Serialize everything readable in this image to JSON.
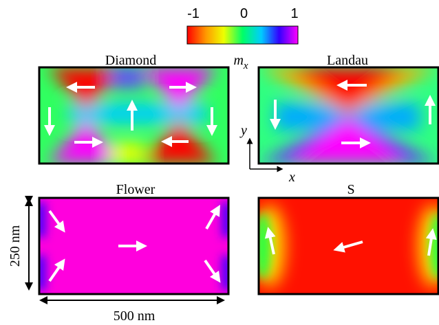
{
  "colorbar": {
    "ticks": [
      -1,
      0,
      1
    ],
    "range": [
      -1,
      1
    ],
    "label": "m",
    "label_sub": "x"
  },
  "panels": [
    {
      "title": "Diamond"
    },
    {
      "title": "Landau"
    },
    {
      "title": "Flower"
    },
    {
      "title": "S"
    }
  ],
  "axes": {
    "x": "x",
    "y": "y"
  },
  "dimensions": {
    "height": "250 nm",
    "width": "500 nm"
  }
}
